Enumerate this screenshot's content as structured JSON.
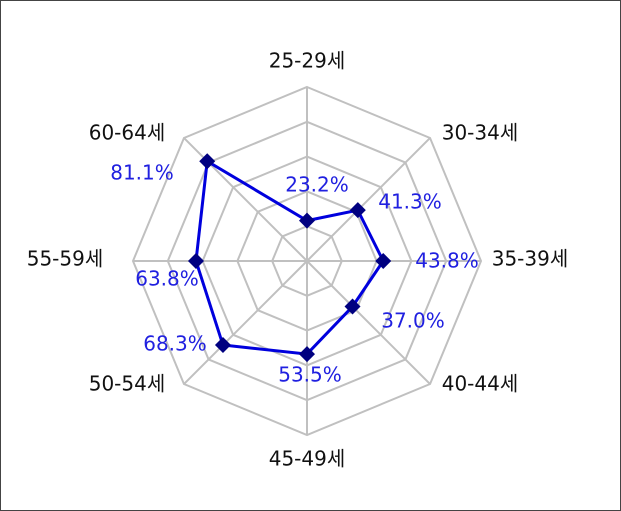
{
  "chart_data": {
    "type": "radar",
    "categories": [
      "25-29세",
      "30-34세",
      "35-39세",
      "40-44세",
      "45-49세",
      "50-54세",
      "55-59세",
      "60-64세"
    ],
    "values": [
      23.2,
      41.3,
      43.8,
      37.0,
      53.5,
      68.3,
      63.8,
      81.1
    ],
    "value_labels": [
      "23.2%",
      "41.3%",
      "43.8%",
      "37.0%",
      "53.5%",
      "68.3%",
      "63.8%",
      "81.1%"
    ],
    "color": "#0000dd",
    "marker_color": "#000080",
    "label_color": "#2020e0",
    "ylim": [
      0,
      100
    ],
    "yticks": [
      0,
      20,
      40,
      60,
      80,
      100
    ],
    "grid": true
  }
}
